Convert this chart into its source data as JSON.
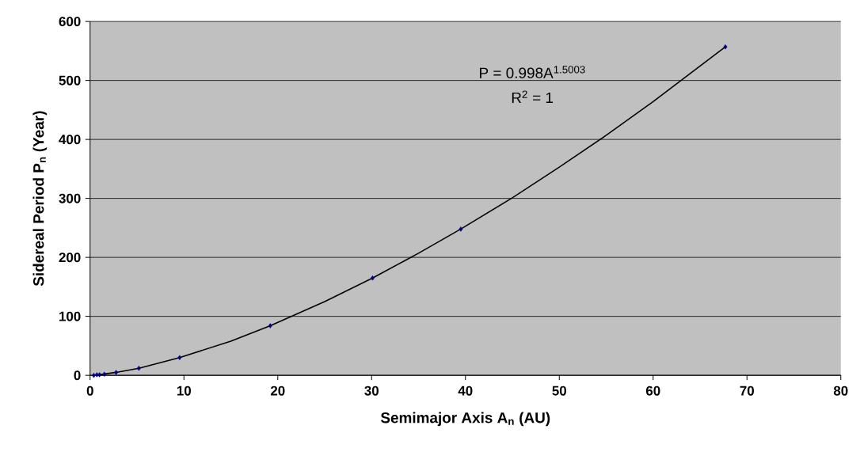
{
  "chart_data": {
    "type": "scatter",
    "xlabel": "Semimajor Axis A$_{n}$ (AU)",
    "ylabel": "Sidereal Period P$_{n}$ (Year)",
    "xlim": [
      0,
      80
    ],
    "ylim": [
      0,
      600
    ],
    "xticks": [
      0,
      10,
      20,
      30,
      40,
      50,
      60,
      70,
      80
    ],
    "yticks": [
      0,
      100,
      200,
      300,
      400,
      500,
      600
    ],
    "grid": "y",
    "annotations": [
      "P = 0.998A$^{1.5003}$",
      "R$^{2}$ = 1"
    ],
    "series": [
      {
        "marker": "diamond",
        "color": "#000080",
        "x": [
          0.39,
          0.72,
          1,
          1.52,
          2.77,
          5.2,
          9.54,
          19.2,
          30.1,
          39.5,
          67.7
        ],
        "values": [
          0,
          1,
          1,
          2,
          5,
          12,
          30,
          84,
          165,
          248,
          557
        ]
      },
      {
        "type": "line",
        "color": "#000000",
        "x": [
          0.39,
          1,
          2.77,
          5.2,
          9.54,
          15,
          19.2,
          25,
          30.1,
          35,
          39.5,
          45,
          50,
          55,
          60,
          67.7
        ],
        "values": [
          0,
          1,
          5,
          12,
          30,
          58,
          84,
          125,
          165,
          207,
          248,
          301,
          353,
          407,
          464,
          557
        ]
      }
    ]
  }
}
